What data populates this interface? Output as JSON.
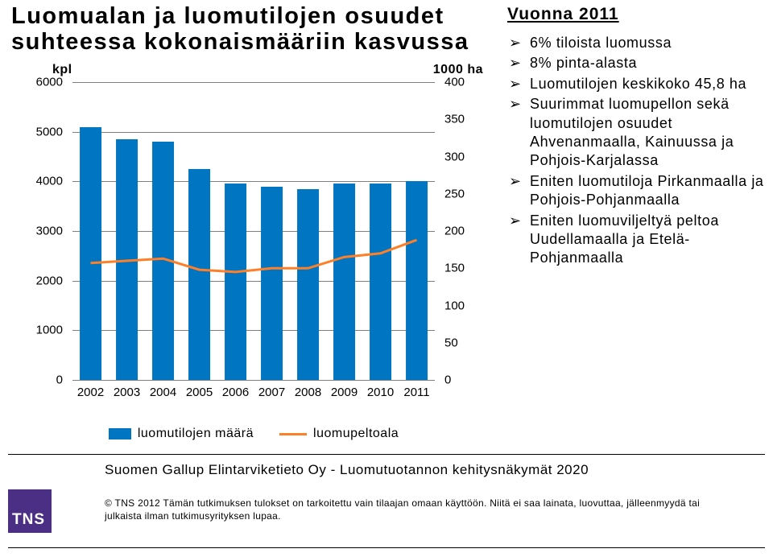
{
  "title": "Luomualan ja luomutilojen osuudet suhteessa kokonaismääriin kasvussa",
  "side": {
    "heading": "Vuonna 2011",
    "bullets": [
      "6% tiloista luomussa",
      "8% pinta-alasta",
      "Luomutilojen keskikoko 45,8 ha",
      "Suurimmat luomupellon sekä luomutilojen osuudet Ahvenanmaalla, Kainuussa ja Pohjois-Karjalassa",
      "Eniten luomutiloja Pirkanmaalla ja Pohjois-Pohjanmaalla",
      "Eniten luomuviljeltyä peltoa Uudellamaalla ja Etelä-Pohjanmaalla"
    ]
  },
  "chart": {
    "type": "bar+line",
    "left_axis": {
      "label": "kpl",
      "min": 0,
      "max": 6000,
      "step": 1000
    },
    "right_axis": {
      "label": "1000 ha",
      "min": 0,
      "max": 400,
      "step": 50
    },
    "categories": [
      "2002",
      "2003",
      "2004",
      "2005",
      "2006",
      "2007",
      "2008",
      "2009",
      "2010",
      "2011"
    ],
    "bar_series": {
      "name": "luomutilojen määrä",
      "color": "#0075c2",
      "values": [
        5100,
        4850,
        4800,
        4250,
        3950,
        3900,
        3850,
        3950,
        3950,
        4000
      ]
    },
    "line_series": {
      "name": "luomupeltoala",
      "color": "#ff7f27",
      "values": [
        157,
        160,
        163,
        148,
        145,
        150,
        150,
        165,
        170,
        188
      ]
    },
    "bar_width_ratio": 0.62,
    "grid_color": "#808080",
    "background_color": "#ffffff",
    "font_size_axis": 15,
    "font_size_legend": 16
  },
  "footer": {
    "subtitle": "Suomen Gallup Elintarviketieto Oy - Luomutuotannon kehitysnäkymät 2020",
    "logo_text": "TNS",
    "logo_bg": "#4b2f85",
    "copyright": "© TNS 2012      Tämän tutkimuksen tulokset on tarkoitettu vain tilaajan omaan käyttöön. Niitä ei saa lainata, luovuttaa, jälleenmyydä tai julkaista ilman tutkimusyrityksen lupaa."
  }
}
